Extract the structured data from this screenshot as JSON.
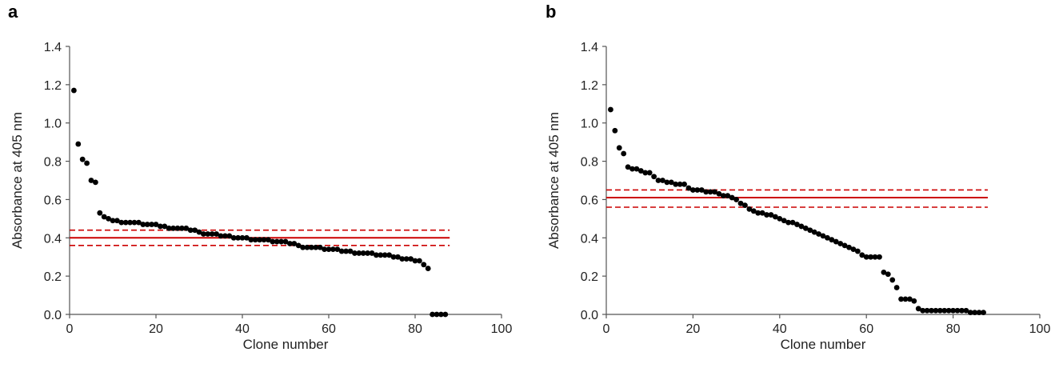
{
  "chart_data": [
    {
      "panel_label": "a",
      "type": "scatter",
      "xlabel": "Clone number",
      "ylabel": "Absorbance at 405 nm",
      "xlim": [
        0,
        100
      ],
      "ylim": [
        0,
        1.4
      ],
      "xticks": [
        "0",
        "20",
        "40",
        "60",
        "80",
        "100"
      ],
      "yticks": [
        "0.0",
        "0.2",
        "0.4",
        "0.6",
        "0.8",
        "1.0",
        "1.2",
        "1.4"
      ],
      "grid": false,
      "point_color": "#000000",
      "reference_lines": {
        "color": "#cc0000",
        "x_range": [
          0,
          88
        ],
        "mean": 0.4,
        "lower": 0.36,
        "upper": 0.44
      },
      "x": [
        1,
        2,
        3,
        4,
        5,
        6,
        7,
        8,
        9,
        10,
        11,
        12,
        13,
        14,
        15,
        16,
        17,
        18,
        19,
        20,
        21,
        22,
        23,
        24,
        25,
        26,
        27,
        28,
        29,
        30,
        31,
        32,
        33,
        34,
        35,
        36,
        37,
        38,
        39,
        40,
        41,
        42,
        43,
        44,
        45,
        46,
        47,
        48,
        49,
        50,
        51,
        52,
        53,
        54,
        55,
        56,
        57,
        58,
        59,
        60,
        61,
        62,
        63,
        64,
        65,
        66,
        67,
        68,
        69,
        70,
        71,
        72,
        73,
        74,
        75,
        76,
        77,
        78,
        79,
        80,
        81,
        82,
        83,
        84,
        85,
        86,
        87
      ],
      "y": [
        1.17,
        0.89,
        0.81,
        0.79,
        0.7,
        0.69,
        0.53,
        0.51,
        0.5,
        0.49,
        0.49,
        0.48,
        0.48,
        0.48,
        0.48,
        0.48,
        0.47,
        0.47,
        0.47,
        0.47,
        0.46,
        0.46,
        0.45,
        0.45,
        0.45,
        0.45,
        0.45,
        0.44,
        0.44,
        0.43,
        0.42,
        0.42,
        0.42,
        0.42,
        0.41,
        0.41,
        0.41,
        0.4,
        0.4,
        0.4,
        0.4,
        0.39,
        0.39,
        0.39,
        0.39,
        0.39,
        0.38,
        0.38,
        0.38,
        0.38,
        0.37,
        0.37,
        0.36,
        0.35,
        0.35,
        0.35,
        0.35,
        0.35,
        0.34,
        0.34,
        0.34,
        0.34,
        0.33,
        0.33,
        0.33,
        0.32,
        0.32,
        0.32,
        0.32,
        0.32,
        0.31,
        0.31,
        0.31,
        0.31,
        0.3,
        0.3,
        0.29,
        0.29,
        0.29,
        0.28,
        0.28,
        0.26,
        0.24,
        0.0,
        0.0,
        0.0,
        0.0
      ]
    },
    {
      "panel_label": "b",
      "type": "scatter",
      "xlabel": "Clone number",
      "ylabel": "Absorbance at 405 nm",
      "xlim": [
        0,
        100
      ],
      "ylim": [
        0,
        1.4
      ],
      "xticks": [
        "0",
        "20",
        "40",
        "60",
        "80",
        "100"
      ],
      "yticks": [
        "0.0",
        "0.2",
        "0.4",
        "0.6",
        "0.8",
        "1.0",
        "1.2",
        "1.4"
      ],
      "grid": false,
      "point_color": "#000000",
      "reference_lines": {
        "color": "#cc0000",
        "x_range": [
          0,
          88
        ],
        "mean": 0.61,
        "lower": 0.56,
        "upper": 0.65
      },
      "x": [
        1,
        2,
        3,
        4,
        5,
        6,
        7,
        8,
        9,
        10,
        11,
        12,
        13,
        14,
        15,
        16,
        17,
        18,
        19,
        20,
        21,
        22,
        23,
        24,
        25,
        26,
        27,
        28,
        29,
        30,
        31,
        32,
        33,
        34,
        35,
        36,
        37,
        38,
        39,
        40,
        41,
        42,
        43,
        44,
        45,
        46,
        47,
        48,
        49,
        50,
        51,
        52,
        53,
        54,
        55,
        56,
        57,
        58,
        59,
        60,
        61,
        62,
        63,
        64,
        65,
        66,
        67,
        68,
        69,
        70,
        71,
        72,
        73,
        74,
        75,
        76,
        77,
        78,
        79,
        80,
        81,
        82,
        83,
        84,
        85,
        86,
        87
      ],
      "y": [
        1.07,
        0.96,
        0.87,
        0.84,
        0.77,
        0.76,
        0.76,
        0.75,
        0.74,
        0.74,
        0.72,
        0.7,
        0.7,
        0.69,
        0.69,
        0.68,
        0.68,
        0.68,
        0.66,
        0.65,
        0.65,
        0.65,
        0.64,
        0.64,
        0.64,
        0.63,
        0.62,
        0.62,
        0.61,
        0.6,
        0.58,
        0.57,
        0.55,
        0.54,
        0.53,
        0.53,
        0.52,
        0.52,
        0.51,
        0.5,
        0.49,
        0.48,
        0.48,
        0.47,
        0.46,
        0.45,
        0.44,
        0.43,
        0.42,
        0.41,
        0.4,
        0.39,
        0.38,
        0.37,
        0.36,
        0.35,
        0.34,
        0.33,
        0.31,
        0.3,
        0.3,
        0.3,
        0.3,
        0.22,
        0.21,
        0.18,
        0.14,
        0.08,
        0.08,
        0.08,
        0.07,
        0.03,
        0.02,
        0.02,
        0.02,
        0.02,
        0.02,
        0.02,
        0.02,
        0.02,
        0.02,
        0.02,
        0.02,
        0.01,
        0.01,
        0.01,
        0.01
      ]
    }
  ]
}
